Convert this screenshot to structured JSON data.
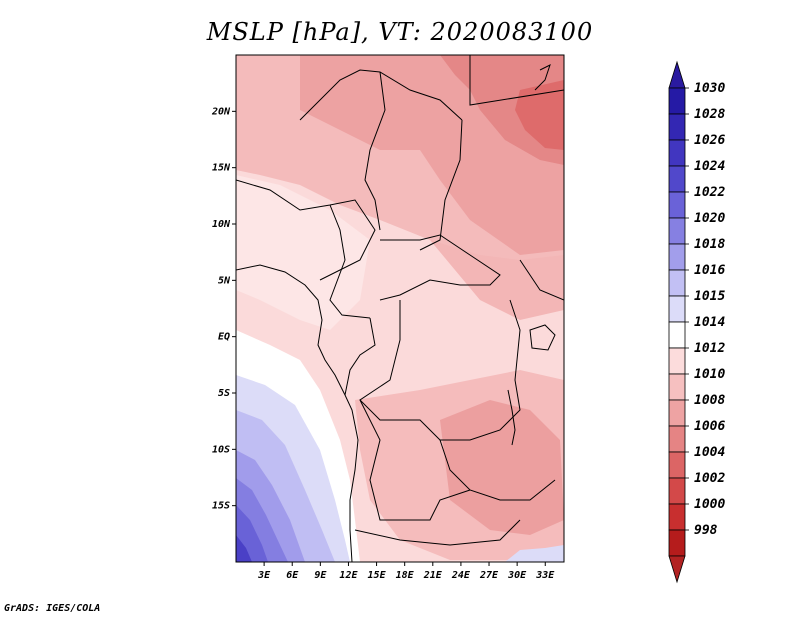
{
  "title": "MSLP [hPa], VT: 2020083100",
  "credit": "GrADS: IGES/COLA",
  "map": {
    "lon_range_deg": [
      0,
      35
    ],
    "lat_range_deg": [
      -20,
      25
    ],
    "lon_ticks": [
      "3E",
      "6E",
      "9E",
      "12E",
      "15E",
      "18E",
      "21E",
      "24E",
      "27E",
      "30E",
      "33E"
    ],
    "lat_ticks": [
      "20N",
      "15N",
      "10N",
      "5N",
      "EQ",
      "5S",
      "10S",
      "15S"
    ],
    "variable": "Mean sea level pressure",
    "units": "hPa",
    "valid_time": "2020083100"
  },
  "colorbar": {
    "levels": [
      "1030",
      "1028",
      "1026",
      "1024",
      "1022",
      "1020",
      "1018",
      "1016",
      "1015",
      "1014",
      "1012",
      "1010",
      "1008",
      "1006",
      "1004",
      "1002",
      "1000",
      "998"
    ],
    "colors": [
      "#251aa5",
      "#3327b3",
      "#4136c0",
      "#5148cb",
      "#6a62d8",
      "#8680e2",
      "#a29eeb",
      "#c2c0f4",
      "#dcdcf9",
      "#ffffff",
      "#fcdcdc",
      "#f6c0c0",
      "#eea3a3",
      "#e58484",
      "#dc6565",
      "#d34949",
      "#c82f2f",
      "#b51c1c"
    ],
    "arrow_top_color": "#2a1aa0",
    "arrow_bottom_color": "#b22222"
  }
}
